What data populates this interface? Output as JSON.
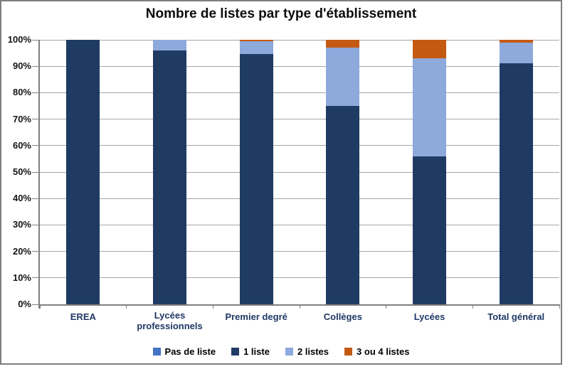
{
  "title": "Nombre de listes par type d'établissement",
  "chart_data": {
    "type": "bar",
    "variant": "stacked-100-percent",
    "title": "Nombre de listes par type d'établissement",
    "categories": [
      "EREA",
      "Lycées professionnels",
      "Premier degré",
      "Collèges",
      "Lycées",
      "Total général"
    ],
    "series": [
      {
        "name": "Pas de liste",
        "color": "#4472c4",
        "values": [
          0,
          0,
          0,
          0,
          0,
          0
        ]
      },
      {
        "name": "1 liste",
        "color": "#1f3b63",
        "values": [
          100,
          96,
          94.5,
          75,
          56,
          91
        ]
      },
      {
        "name": "2 listes",
        "color": "#8ea9db",
        "values": [
          0,
          4,
          5,
          22,
          37,
          8
        ]
      },
      {
        "name": "3 ou 4 listes",
        "color": "#c45a11",
        "values": [
          0,
          0,
          0.5,
          3,
          7,
          1
        ]
      }
    ],
    "y_ticks": [
      "100%",
      "90%",
      "80%",
      "70%",
      "60%",
      "50%",
      "40%",
      "30%",
      "20%",
      "10%",
      "0%"
    ],
    "ylim": [
      0,
      100
    ],
    "unit": "percent",
    "grid": true,
    "legend_position": "bottom"
  }
}
